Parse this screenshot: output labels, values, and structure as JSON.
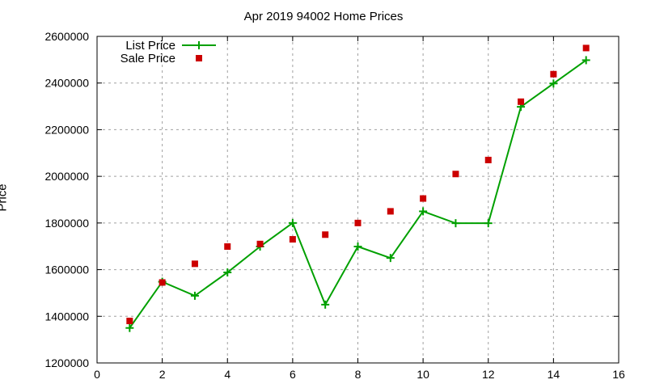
{
  "chart_data": {
    "type": "line",
    "title": "Apr 2019 94002 Home Prices",
    "xlabel": "",
    "ylabel": "Price",
    "xlim": [
      0,
      16
    ],
    "ylim": [
      1200000,
      2600000
    ],
    "xticks": [
      0,
      2,
      4,
      6,
      8,
      10,
      12,
      14,
      16
    ],
    "yticks": [
      1200000,
      1400000,
      1600000,
      1800000,
      2000000,
      2200000,
      2400000,
      2600000
    ],
    "grid": true,
    "legend_position": "top-left",
    "x": [
      1,
      2,
      3,
      4,
      5,
      6,
      7,
      8,
      9,
      10,
      11,
      12,
      13,
      14,
      15
    ],
    "series": [
      {
        "name": "List Price",
        "style": "linespoints",
        "color": "#00a000",
        "marker": "plus",
        "values": [
          1350000,
          1548000,
          1488000,
          1588000,
          1699000,
          1800000,
          1450000,
          1699000,
          1650000,
          1850000,
          1799000,
          1799000,
          2298000,
          2398000,
          2498000
        ]
      },
      {
        "name": "Sale Price",
        "style": "points",
        "color": "#cc0000",
        "marker": "square",
        "values": [
          1380000,
          1545000,
          1625000,
          1699000,
          1710000,
          1730000,
          1750000,
          1800000,
          1850000,
          1905000,
          2010000,
          2070000,
          2320000,
          2438000,
          2550000
        ]
      }
    ]
  }
}
